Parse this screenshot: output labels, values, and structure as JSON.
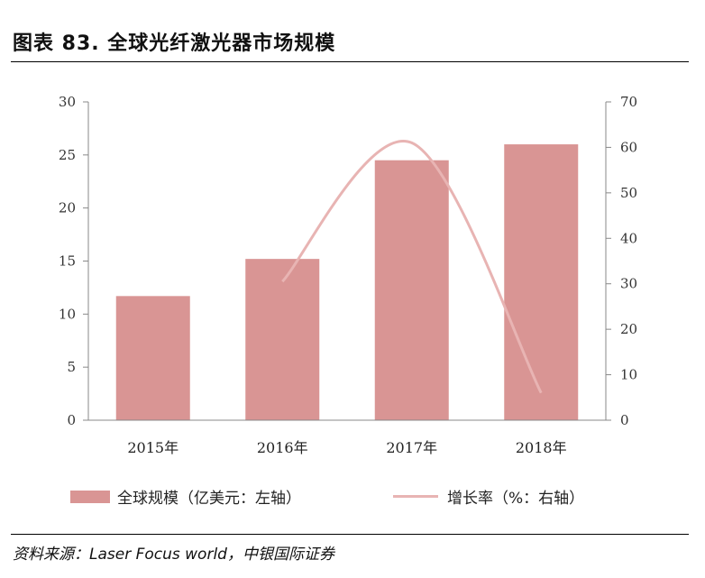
{
  "header": {
    "title": "图表 83. 全球光纤激光器市场规模"
  },
  "colors": {
    "bar": "#d99594",
    "line": "#e8b4b3",
    "axis": "#888888"
  },
  "chart_data": {
    "type": "bar",
    "categories": [
      "2015年",
      "2016年",
      "2017年",
      "2018年"
    ],
    "series": [
      {
        "name": "全球规模（亿美元：左轴）",
        "type": "bar",
        "axis": "left",
        "values": [
          11.7,
          15.2,
          24.5,
          26.0
        ]
      },
      {
        "name": "增长率（%：右轴）",
        "type": "line",
        "axis": "right",
        "values": [
          null,
          30.5,
          61.0,
          6.0
        ]
      }
    ],
    "ylim_left": [
      0,
      30
    ],
    "yticks_left": [
      0,
      5,
      10,
      15,
      20,
      25,
      30
    ],
    "ylim_right": [
      0,
      70
    ],
    "yticks_right": [
      0,
      10,
      20,
      30,
      40,
      50,
      60,
      70
    ],
    "grid": false,
    "legend_position": "bottom"
  },
  "source": {
    "text": "资料来源：Laser Focus world，中银国际证券"
  }
}
